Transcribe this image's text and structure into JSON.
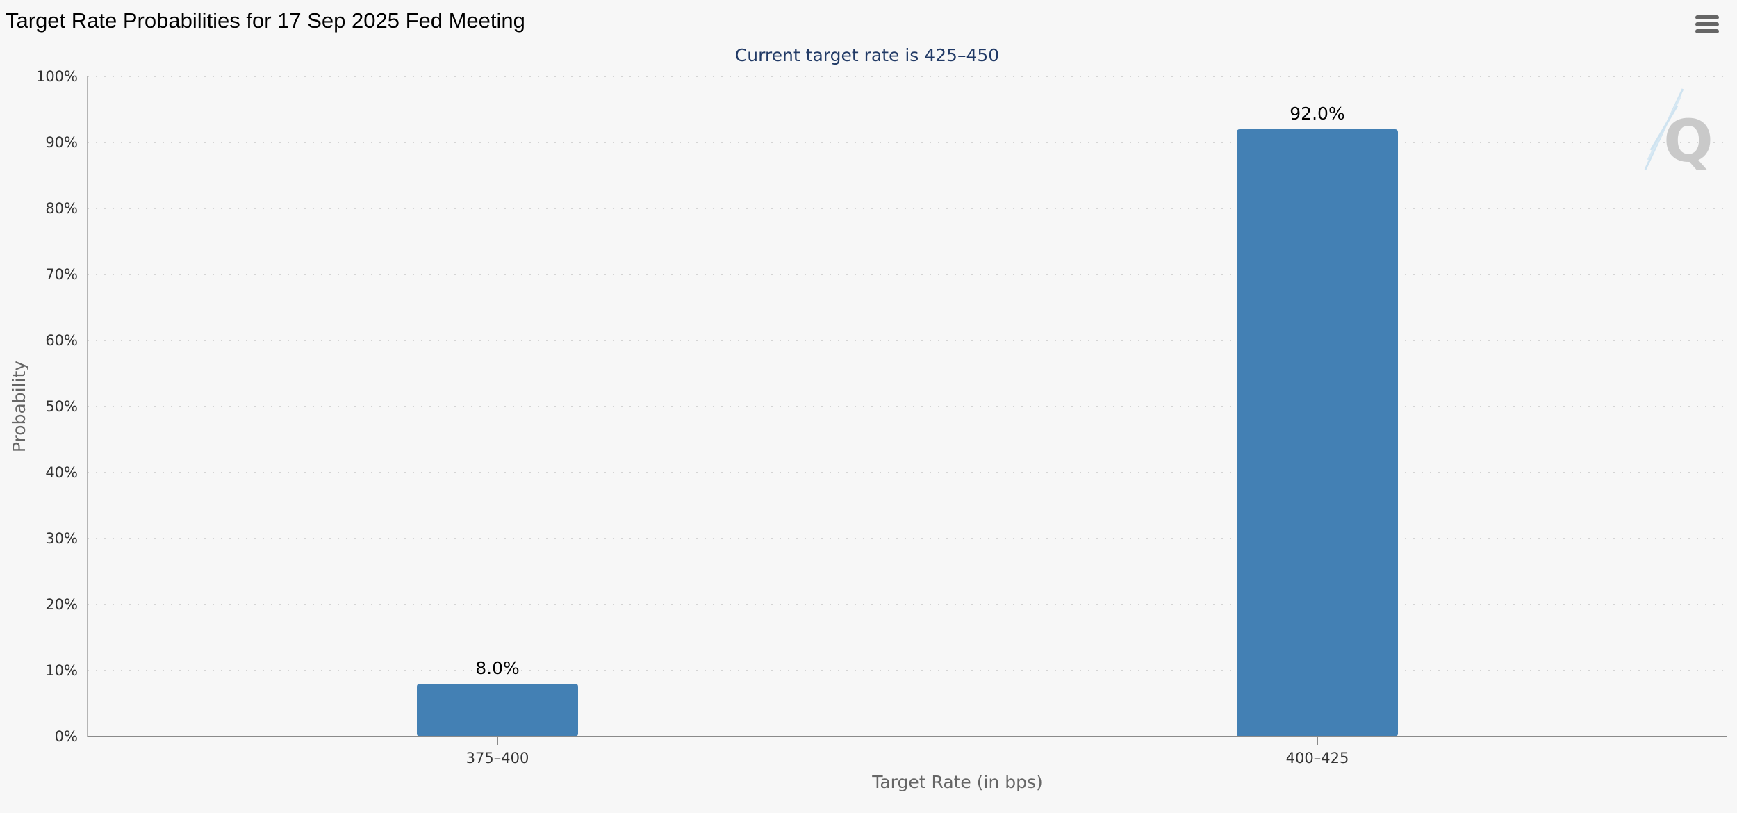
{
  "chart_data": {
    "type": "bar",
    "title": "Target Rate Probabilities for 17 Sep 2025 Fed Meeting",
    "subtitle": "Current target rate is 425–450",
    "xlabel": "Target Rate (in bps)",
    "ylabel": "Probability",
    "categories": [
      "375–400",
      "400–425"
    ],
    "values": [
      8.0,
      92.0
    ],
    "data_labels": [
      "8.0%",
      "92.0%"
    ],
    "ylim": [
      0,
      100
    ],
    "yticks": [
      0,
      10,
      20,
      30,
      40,
      50,
      60,
      70,
      80,
      90,
      100
    ],
    "ytick_labels": [
      "0%",
      "10%",
      "20%",
      "30%",
      "40%",
      "50%",
      "60%",
      "70%",
      "80%",
      "90%",
      "100%"
    ],
    "grid": true,
    "legend": "none",
    "bar_color": "#4380b4"
  },
  "menu": {
    "icon": "hamburger-menu-icon"
  },
  "watermark": {
    "icon": "q-logo-watermark"
  }
}
